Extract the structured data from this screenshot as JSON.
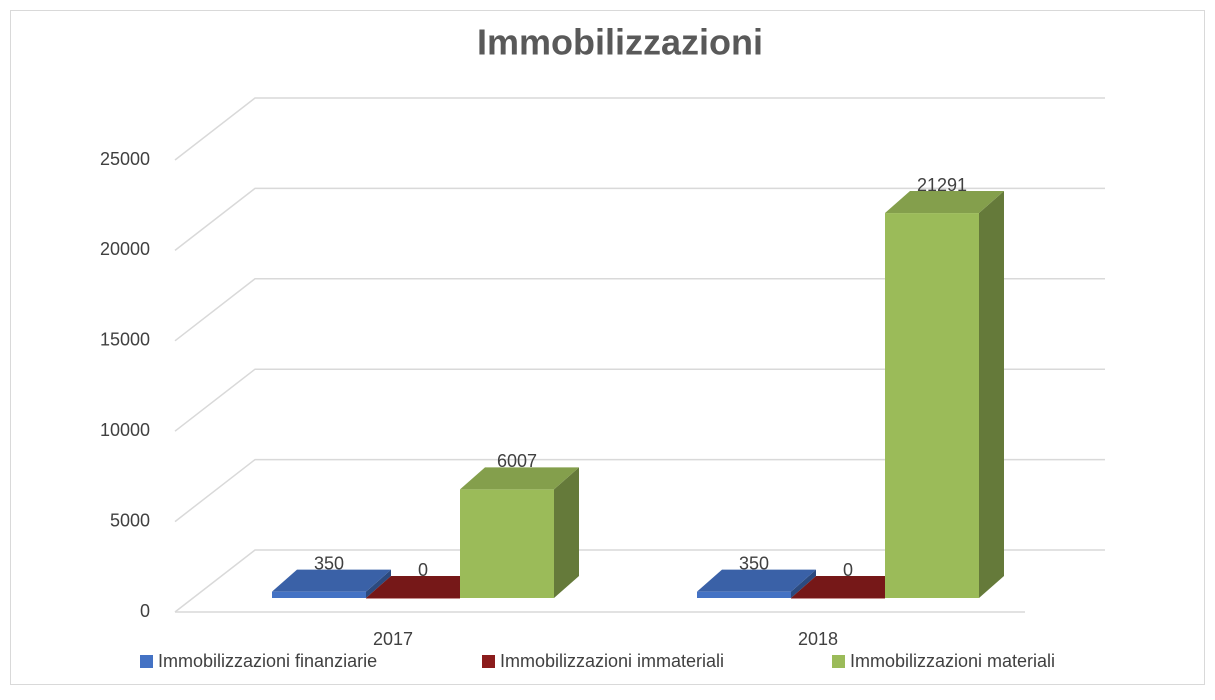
{
  "chart_data": {
    "type": "bar3d",
    "title": "Immobilizzazioni",
    "categories": [
      "2017",
      "2018"
    ],
    "series": [
      {
        "name": "Immobilizzazioni finanziarie",
        "color": "#4472c4",
        "values": [
          350,
          350
        ]
      },
      {
        "name": "Immobilizzazioni immateriali",
        "color": "#8b1c1c",
        "values": [
          0,
          0
        ]
      },
      {
        "name": "Immobilizzazioni materiali",
        "color": "#9bbb59",
        "values": [
          6007,
          21291
        ]
      }
    ],
    "ylim": [
      0,
      25000
    ],
    "yticks": [
      0,
      5000,
      10000,
      15000,
      20000,
      25000
    ],
    "grid": true,
    "legend": "bottom"
  }
}
